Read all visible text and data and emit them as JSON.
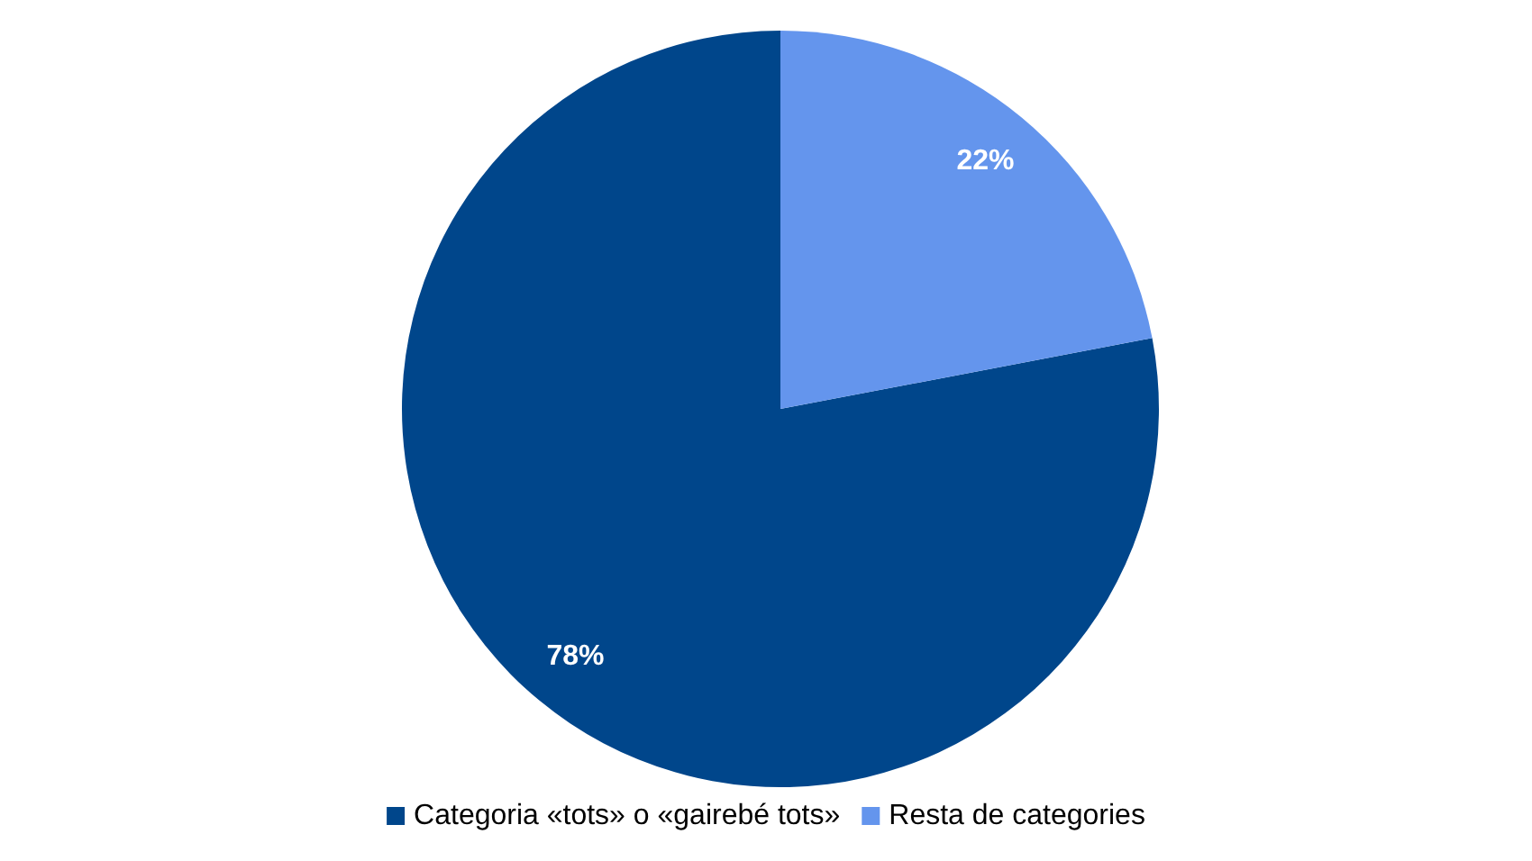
{
  "chart_data": {
    "type": "pie",
    "categories": [
      "Categoria «tots» o «gairebé tots»",
      "Resta de categories"
    ],
    "values": [
      78,
      22
    ],
    "value_labels": [
      "78%",
      "22%"
    ],
    "colors": [
      "#00468b",
      "#6495ed"
    ],
    "legend": "bottom"
  }
}
